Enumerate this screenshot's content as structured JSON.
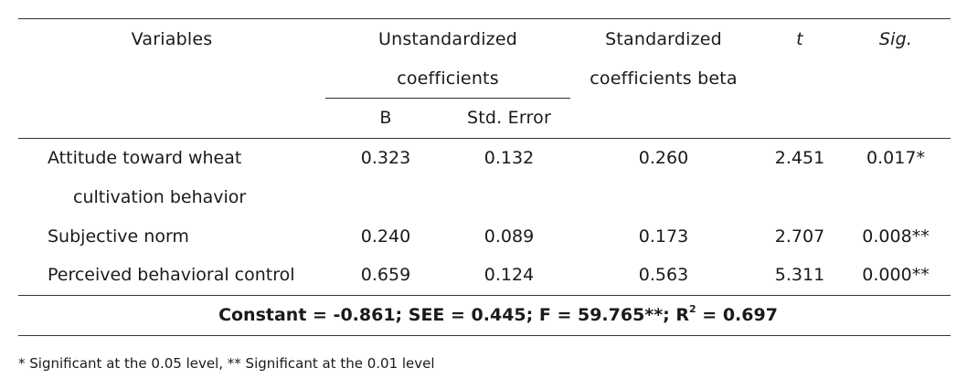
{
  "table": {
    "header": {
      "variables": "Variables",
      "unstd_line1": "Unstandardized",
      "unstd_line2": "coefficients",
      "std_line1": "Standardized",
      "std_line2": "coefficients beta",
      "t": "t",
      "sig": "Sig.",
      "b": "B",
      "std_error": "Std. Error"
    },
    "rows": [
      {
        "variable_line1": "Attitude toward wheat",
        "variable_line2": "cultivation behavior",
        "b": "0.323",
        "se": "0.132",
        "beta": "0.260",
        "t": "2.451",
        "sig": "0.017*"
      },
      {
        "variable_line1": "Subjective norm",
        "b": "0.240",
        "se": "0.089",
        "beta": "0.173",
        "t": "2.707",
        "sig": "0.008**"
      },
      {
        "variable_line1": "Perceived behavioral control",
        "b": "0.659",
        "se": "0.124",
        "beta": "0.563",
        "t": "5.311",
        "sig": "0.000**"
      }
    ],
    "summary": {
      "prefix": "Constant = -0.861; SEE = 0.445; F = 59.765**; R",
      "superscript": "2",
      "suffix": " = 0.697"
    }
  },
  "footnote": "* Significant at the 0.05 level, ** Significant at the 0.01 level"
}
